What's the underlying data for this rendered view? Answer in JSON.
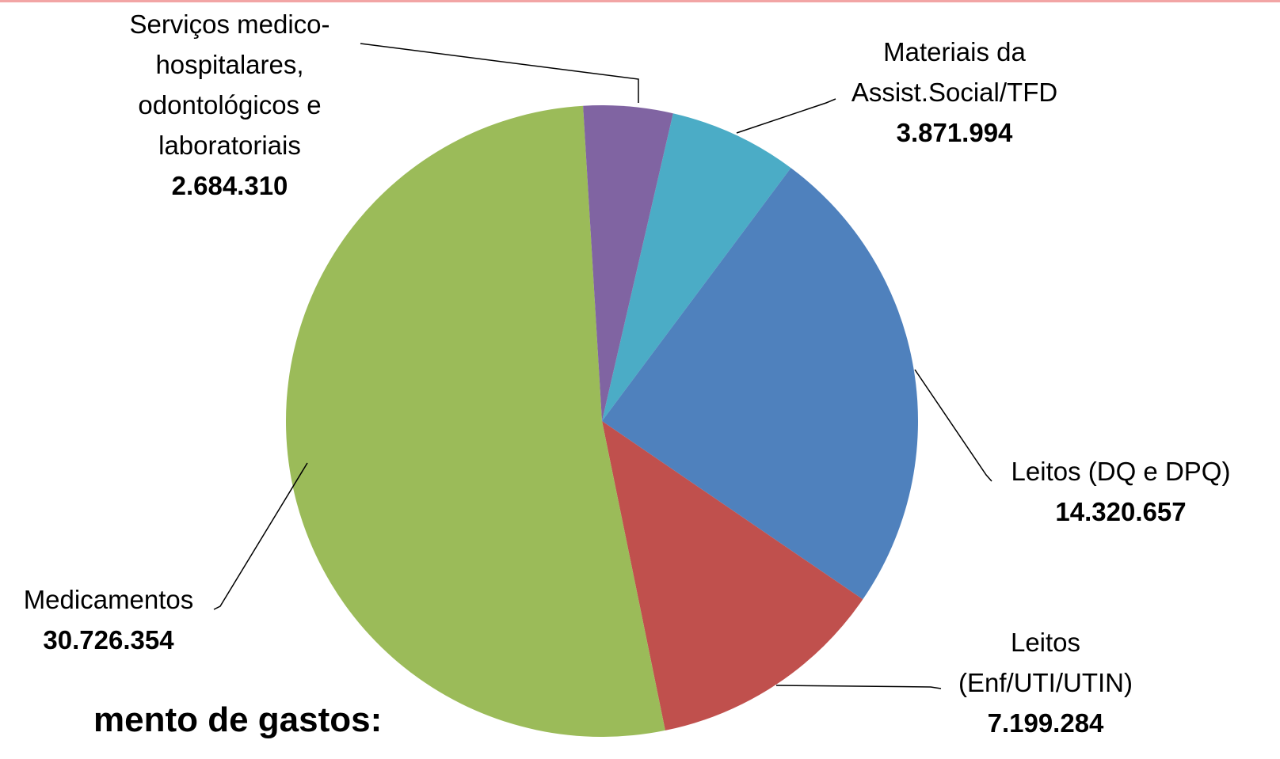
{
  "chart_data": {
    "type": "pie",
    "categories": [
      "Materiais da Assist.Social/TFD",
      "Leitos (DQ e DPQ)",
      "Leitos (Enf/UTI/UTIN)",
      "Medicamentos",
      "Serviços medico-hospitalares, odontológicos e laboratoriais"
    ],
    "values": [
      3871994,
      14320657,
      7199284,
      30726354,
      2684310
    ],
    "value_labels": [
      "3.871.994",
      "14.320.657",
      "7.199.284",
      "30.726.354",
      "2.684.310"
    ],
    "colors": [
      "#4bacc6",
      "#4f81bd",
      "#c0504d",
      "#9bbb59",
      "#8064a2"
    ]
  },
  "caption": "mento de gastos:"
}
